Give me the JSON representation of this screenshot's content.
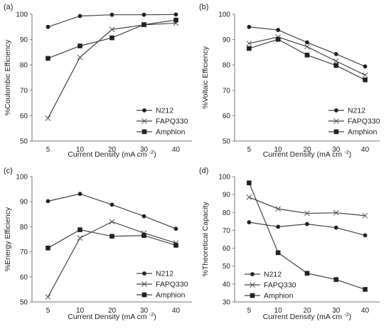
{
  "chart_data": [
    {
      "type": "line",
      "panel_label": "(a)",
      "ylabel": "%Coulombic Efficiency",
      "xlabel": "Current Density (mA cm",
      "xlabel_sup": "-2",
      "xlabel_suffix": ")",
      "categories": [
        "5",
        "10",
        "20",
        "30",
        "40"
      ],
      "ylim": [
        50,
        100
      ],
      "yticks": [
        50,
        60,
        70,
        80,
        90,
        100
      ],
      "legend_position": "bottom-right",
      "series": [
        {
          "name": "N212",
          "marker": "circle",
          "values": [
            95.0,
            99.3,
            99.8,
            99.8,
            99.9
          ]
        },
        {
          "name": "FAPQ330",
          "marker": "x",
          "values": [
            59.0,
            83.0,
            94.0,
            95.8,
            96.5
          ]
        },
        {
          "name": "Amphion",
          "marker": "square",
          "values": [
            82.6,
            87.5,
            90.7,
            95.9,
            97.7
          ]
        }
      ]
    },
    {
      "type": "line",
      "panel_label": "(b)",
      "ylabel": "%Voltaic Efficiency",
      "xlabel": "Current Density (mA cm",
      "xlabel_sup": "-2",
      "xlabel_suffix": ")",
      "categories": [
        "5",
        "10",
        "20",
        "30",
        "40"
      ],
      "ylim": [
        50,
        100
      ],
      "yticks": [
        50,
        60,
        70,
        80,
        90,
        100
      ],
      "legend_position": "bottom-right",
      "series": [
        {
          "name": "N212",
          "marker": "circle",
          "values": [
            95.0,
            93.8,
            88.9,
            84.3,
            79.4
          ]
        },
        {
          "name": "FAPQ330",
          "marker": "x",
          "values": [
            88.5,
            91.0,
            87.2,
            81.5,
            76.0
          ]
        },
        {
          "name": "Amphion",
          "marker": "square",
          "values": [
            86.5,
            90.1,
            83.9,
            79.8,
            74.1
          ]
        }
      ]
    },
    {
      "type": "line",
      "panel_label": "(c)",
      "ylabel": "%Energy Efficiency",
      "xlabel": "Current Density (mA cm",
      "xlabel_sup": "-2",
      "xlabel_suffix": ")",
      "categories": [
        "5",
        "10",
        "20",
        "30",
        "40"
      ],
      "ylim": [
        50,
        100
      ],
      "yticks": [
        50,
        60,
        70,
        80,
        90,
        100
      ],
      "legend_position": "bottom-right",
      "series": [
        {
          "name": "N212",
          "marker": "circle",
          "values": [
            90.2,
            93.1,
            88.8,
            84.2,
            79.2
          ]
        },
        {
          "name": "FAPQ330",
          "marker": "x",
          "values": [
            52.0,
            75.5,
            82.0,
            77.5,
            73.5
          ]
        },
        {
          "name": "Amphion",
          "marker": "square",
          "values": [
            71.5,
            78.8,
            76.2,
            76.5,
            72.6
          ]
        }
      ]
    },
    {
      "type": "line",
      "panel_label": "(d)",
      "ylabel": "%Theoretical Capacity",
      "xlabel": "Current Density (mA cm",
      "xlabel_sup": "-2",
      "xlabel_suffix": ")",
      "categories": [
        "5",
        "10",
        "20",
        "30",
        "40"
      ],
      "ylim": [
        30,
        100
      ],
      "yticks": [
        30,
        40,
        50,
        60,
        70,
        80,
        90,
        100
      ],
      "legend_position": "bottom-left",
      "series": [
        {
          "name": "N212",
          "marker": "circle",
          "values": [
            74.5,
            72.0,
            73.5,
            71.5,
            67.2
          ]
        },
        {
          "name": "FAPQ330",
          "marker": "x",
          "values": [
            88.5,
            82.0,
            79.5,
            79.8,
            78.2
          ]
        },
        {
          "name": "Amphion",
          "marker": "square",
          "values": [
            96.5,
            57.5,
            46.0,
            42.5,
            37.0
          ]
        }
      ]
    }
  ]
}
